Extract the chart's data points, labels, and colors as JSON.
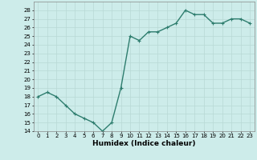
{
  "x": [
    0,
    1,
    2,
    3,
    4,
    5,
    6,
    7,
    8,
    9,
    10,
    11,
    12,
    13,
    14,
    15,
    16,
    17,
    18,
    19,
    20,
    21,
    22,
    23
  ],
  "y": [
    18,
    18.5,
    18,
    17,
    16,
    15.5,
    15,
    14,
    15,
    19,
    25,
    24.5,
    25.5,
    25.5,
    26,
    26.5,
    28,
    27.5,
    27.5,
    26.5,
    26.5,
    27,
    27,
    26.5
  ],
  "line_color": "#2e7d6e",
  "marker": "+",
  "marker_size": 3,
  "linewidth": 1.0,
  "xlabel": "Humidex (Indice chaleur)",
  "ylim": [
    14,
    29
  ],
  "xlim": [
    -0.5,
    23.5
  ],
  "yticks": [
    14,
    15,
    16,
    17,
    18,
    19,
    20,
    21,
    22,
    23,
    24,
    25,
    26,
    27,
    28
  ],
  "xticks": [
    0,
    1,
    2,
    3,
    4,
    5,
    6,
    7,
    8,
    9,
    10,
    11,
    12,
    13,
    14,
    15,
    16,
    17,
    18,
    19,
    20,
    21,
    22,
    23
  ],
  "bg_color": "#cdecea",
  "grid_color": "#b8d8d5",
  "tick_fontsize": 5,
  "xlabel_fontsize": 6.5
}
